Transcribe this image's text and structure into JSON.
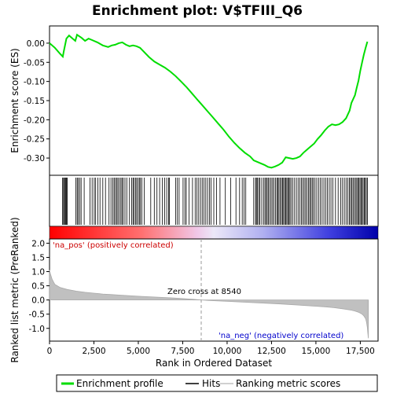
{
  "chart_data": {
    "type": "line",
    "title": "Enrichment plot: V$TFIII_Q6",
    "xlabel": "Rank in Ordered Dataset",
    "ylabel_top": "Enrichment score (ES)",
    "ylabel_bottom": "Ranked list metric (PreRanked)",
    "x_range": [
      0,
      18500
    ],
    "x_ticks": [
      0,
      2500,
      5000,
      7500,
      10000,
      12500,
      15000,
      17500
    ],
    "x_tick_labels": [
      "0",
      "2,500",
      "5,000",
      "7,500",
      "10,000",
      "12,500",
      "15,000",
      "17,500"
    ],
    "top_ylim": [
      -0.345,
      0.045
    ],
    "top_y_ticks": [
      0.0,
      -0.05,
      -0.1,
      -0.15,
      -0.2,
      -0.25,
      -0.3
    ],
    "top_y_tick_labels": [
      "0.00",
      "-0.05",
      "-0.10",
      "-0.15",
      "-0.20",
      "-0.25",
      "-0.30"
    ],
    "bottom_ylim": [
      -1.45,
      2.15
    ],
    "bottom_y_ticks": [
      2.0,
      1.5,
      1.0,
      0.5,
      0.0,
      -0.5,
      -1.0
    ],
    "bottom_y_tick_labels": [
      "2.0",
      "1.5",
      "1.0",
      "0.5",
      "0.0",
      "-0.5",
      "-1.0"
    ],
    "series": [
      {
        "name": "Enrichment profile",
        "color": "#00dd00",
        "x": [
          0,
          300,
          600,
          750,
          800,
          950,
          1100,
          1300,
          1450,
          1550,
          1800,
          2000,
          2200,
          2400,
          2700,
          3000,
          3300,
          3500,
          3700,
          3900,
          4100,
          4300,
          4500,
          4700,
          4900,
          5100,
          5300,
          5600,
          5900,
          6200,
          6500,
          6800,
          7100,
          7400,
          7700,
          8000,
          8300,
          8600,
          8900,
          9200,
          9500,
          9800,
          10100,
          10400,
          10700,
          11000,
          11300,
          11500,
          11800,
          12100,
          12300,
          12500,
          12700,
          12900,
          13100,
          13300,
          13500,
          13700,
          13900,
          14100,
          14300,
          14500,
          14700,
          14900,
          15100,
          15300,
          15500,
          15700,
          15900,
          16100,
          16300,
          16500,
          16700,
          16900,
          17000,
          17200,
          17300,
          17400,
          17500,
          17600,
          17700,
          17800,
          17900
        ],
        "y": [
          0.0,
          -0.012,
          -0.028,
          -0.035,
          -0.022,
          0.012,
          0.02,
          0.012,
          0.006,
          0.022,
          0.014,
          0.006,
          0.012,
          0.008,
          0.002,
          -0.006,
          -0.01,
          -0.006,
          -0.004,
          0.0,
          0.002,
          -0.004,
          -0.008,
          -0.006,
          -0.008,
          -0.012,
          -0.022,
          -0.036,
          -0.048,
          -0.056,
          -0.064,
          -0.074,
          -0.086,
          -0.1,
          -0.114,
          -0.13,
          -0.146,
          -0.162,
          -0.178,
          -0.194,
          -0.21,
          -0.226,
          -0.244,
          -0.26,
          -0.274,
          -0.286,
          -0.296,
          -0.306,
          -0.312,
          -0.318,
          -0.323,
          -0.325,
          -0.322,
          -0.318,
          -0.312,
          -0.298,
          -0.3,
          -0.302,
          -0.3,
          -0.296,
          -0.286,
          -0.278,
          -0.27,
          -0.262,
          -0.25,
          -0.24,
          -0.228,
          -0.218,
          -0.212,
          -0.214,
          -0.212,
          -0.206,
          -0.196,
          -0.176,
          -0.156,
          -0.136,
          -0.116,
          -0.098,
          -0.072,
          -0.05,
          -0.03,
          -0.012,
          0.004
        ]
      },
      {
        "name": "Hits",
        "color": "#000000",
        "ranks": [
          730,
          790,
          830,
          880,
          920,
          960,
          1000,
          1480,
          1560,
          1620,
          1700,
          1780,
          1950,
          2280,
          2400,
          2520,
          2600,
          2720,
          2840,
          3000,
          3150,
          3350,
          3460,
          3560,
          3640,
          3710,
          3780,
          3850,
          3930,
          4020,
          4080,
          4150,
          4250,
          4350,
          4500,
          4620,
          4700,
          4760,
          4840,
          4910,
          4990,
          5060,
          5120,
          5200,
          5330,
          5700,
          5900,
          6050,
          6200,
          6350,
          6480,
          6600,
          6700,
          6750,
          7100,
          7200,
          7300,
          7520,
          7620,
          7700,
          7850,
          8050,
          8200,
          8300,
          8400,
          8500,
          8600,
          8700,
          8800,
          8900,
          9000,
          9100,
          9250,
          9400,
          9600,
          9900,
          10200,
          10500,
          10700,
          10850,
          10950,
          11050,
          11500,
          11600,
          11650,
          11700,
          11780,
          11850,
          11950,
          12050,
          12130,
          12200,
          12260,
          12320,
          12400,
          12480,
          12560,
          12640,
          12720,
          12800,
          12860,
          12920,
          12990,
          13060,
          13120,
          13180,
          13240,
          13300,
          13360,
          13420,
          13480,
          13540,
          13600,
          13700,
          13800,
          13900,
          14000,
          14100,
          14180,
          14260,
          14340,
          14420,
          14500,
          14580,
          14650,
          14720,
          14790,
          14860,
          14950,
          15050,
          15150,
          15250,
          15350,
          15450,
          15550,
          15650,
          15750,
          15850,
          15950,
          16100,
          16250,
          16400,
          16500,
          16600,
          16700,
          16800,
          16880,
          16950,
          17020,
          17090,
          17160,
          17230,
          17300,
          17360,
          17420,
          17480,
          17540,
          17600,
          17660,
          17720,
          17780,
          17840,
          17900
        ]
      },
      {
        "name": "Ranking metric scores",
        "color": "#c0c0c0",
        "x": [
          0,
          50,
          150,
          300,
          600,
          1000,
          1500,
          2000,
          2500,
          3000,
          3500,
          4000,
          5000,
          6000,
          7000,
          8000,
          8540,
          9000,
          10000,
          11000,
          12000,
          13000,
          14000,
          15000,
          15500,
          16000,
          16500,
          17000,
          17200,
          17400,
          17600,
          17700,
          17800,
          17850,
          17900,
          17950
        ],
        "y": [
          1.05,
          0.92,
          0.72,
          0.55,
          0.44,
          0.37,
          0.31,
          0.27,
          0.24,
          0.21,
          0.19,
          0.17,
          0.13,
          0.1,
          0.07,
          0.03,
          0.0,
          -0.02,
          -0.05,
          -0.08,
          -0.11,
          -0.14,
          -0.18,
          -0.22,
          -0.24,
          -0.27,
          -0.31,
          -0.36,
          -0.39,
          -0.43,
          -0.5,
          -0.56,
          -0.66,
          -0.78,
          -0.98,
          -1.35
        ]
      }
    ],
    "zero_cross_rank": 8540,
    "annotations": {
      "na_pos": "'na_pos' (positively correlated)",
      "na_neg": "'na_neg' (negatively correlated)",
      "zero_cross": "Zero cross at 8540"
    },
    "legend": [
      "Enrichment profile",
      "Hits",
      "Ranking metric scores"
    ],
    "colors": {
      "profile": "#00dd00",
      "na_pos_text": "#cc0000",
      "na_neg_text": "#0000cc",
      "metric_fill": "#c0c0c0"
    }
  }
}
